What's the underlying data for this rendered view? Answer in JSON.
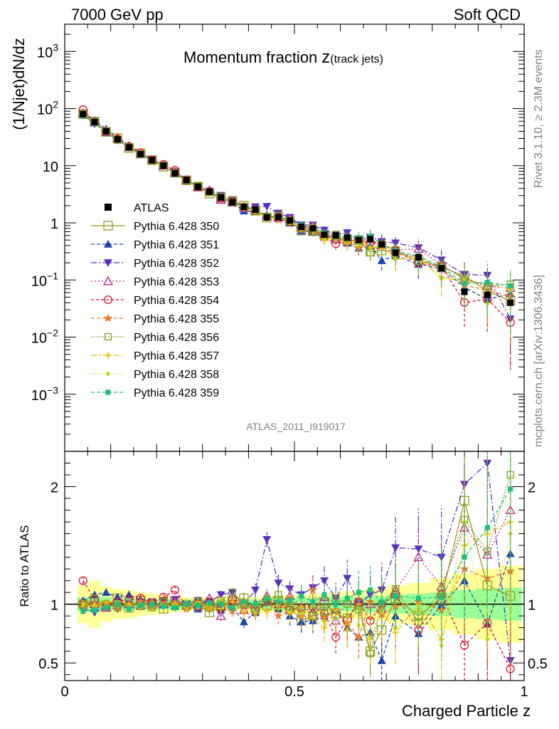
{
  "header": {
    "left": "7000 GeV pp",
    "right": "Soft QCD"
  },
  "side_labels": {
    "rivet": "Rivet 3.1.10, ≥ 2.3M events",
    "mcplots": "mcplots.cern.ch [arXiv:1306.3436]"
  },
  "chart_data": {
    "type": "line",
    "title": "Momentum fraction",
    "title_sub": "z",
    "title_sub_note": "(track jets)",
    "analysis_id": "ATLAS_2011_I919017",
    "xlabel": "Charged Particle z",
    "ylabel": "(1/Njet)dN/dz",
    "ratio_ylabel": "Ratio to ATLAS",
    "xlim": [
      0,
      1
    ],
    "ylim": [
      0.0001,
      3000
    ],
    "yscale": "log",
    "ratio_ylim": [
      0.35,
      2.3
    ],
    "x_ticks": [
      "0",
      "0.5",
      "1"
    ],
    "y_ticks": [
      {
        "base": "10",
        "exp": "3",
        "value": 1000
      },
      {
        "base": "10",
        "exp": "2",
        "value": 100
      },
      {
        "base": "10",
        "exp": "",
        "value": 10
      },
      {
        "base": "1",
        "exp": "",
        "value": 1
      },
      {
        "base": "10",
        "exp": "−1",
        "value": 0.1
      },
      {
        "base": "10",
        "exp": "−2",
        "value": 0.01
      },
      {
        "base": "10",
        "exp": "−3",
        "value": 0.001
      }
    ],
    "ratio_ticks": [
      "0.5",
      "1",
      "2"
    ],
    "ratio_tick_values": [
      0.5,
      1,
      2
    ],
    "x": [
      0.04,
      0.065,
      0.09,
      0.115,
      0.14,
      0.165,
      0.19,
      0.215,
      0.24,
      0.265,
      0.29,
      0.315,
      0.34,
      0.365,
      0.39,
      0.415,
      0.44,
      0.465,
      0.49,
      0.515,
      0.54,
      0.565,
      0.59,
      0.615,
      0.64,
      0.665,
      0.69,
      0.72,
      0.77,
      0.82,
      0.87,
      0.92,
      0.97
    ],
    "atlas": {
      "name": "ATLAS",
      "values": [
        80,
        58,
        40,
        29,
        21,
        16,
        12.5,
        10,
        7.4,
        5.6,
        4.3,
        3.5,
        2.8,
        2.3,
        1.9,
        1.7,
        1.25,
        1.25,
        1.1,
        0.85,
        0.8,
        0.62,
        0.6,
        0.55,
        0.5,
        0.52,
        0.42,
        0.3,
        0.25,
        0.16,
        0.062,
        0.055,
        0.04
      ],
      "band_inner": [
        0.06,
        0.07,
        0.06,
        0.05,
        0.05,
        0.05,
        0.05,
        0.04,
        0.04,
        0.04,
        0.04,
        0.04,
        0.04,
        0.04,
        0.04,
        0.04,
        0.05,
        0.05,
        0.05,
        0.05,
        0.05,
        0.06,
        0.06,
        0.06,
        0.06,
        0.07,
        0.07,
        0.08,
        0.09,
        0.1,
        0.12,
        0.13,
        0.14
      ],
      "band_outer": [
        0.16,
        0.2,
        0.15,
        0.13,
        0.12,
        0.1,
        0.09,
        0.08,
        0.07,
        0.06,
        0.06,
        0.06,
        0.06,
        0.06,
        0.06,
        0.06,
        0.07,
        0.07,
        0.08,
        0.08,
        0.09,
        0.09,
        0.1,
        0.11,
        0.12,
        0.13,
        0.14,
        0.16,
        0.18,
        0.22,
        0.26,
        0.3,
        0.33
      ]
    },
    "series": [
      {
        "name": "Pythia 6.428 350",
        "color": "#9a9a20",
        "marker": "square-open",
        "dash": "",
        "values": [
          1.0,
          1.02,
          0.98,
          1.05,
          0.97,
          1.03,
          1.0,
          0.96,
          1.02,
          0.99,
          1.0,
          0.93,
          0.98,
          1.02,
          1.05,
          0.96,
          0.99,
          1.03,
          0.98,
          0.86,
          0.9,
          1.01,
          0.92,
          0.88,
          1.0,
          0.6,
          0.78,
          1.05,
          0.9,
          1.05,
          1.88,
          1.16,
          1.07
        ]
      },
      {
        "name": "Pythia 6.428 351",
        "color": "#1a48b0",
        "marker": "triangle-up",
        "dash": "5,3",
        "values": [
          1.03,
          1.08,
          1.1,
          1.06,
          1.08,
          1.04,
          1.02,
          1.0,
          0.98,
          1.0,
          0.96,
          1.01,
          0.95,
          0.97,
          0.85,
          0.93,
          1.02,
          0.96,
          0.9,
          0.85,
          0.86,
          0.9,
          0.95,
          0.8,
          0.72,
          0.76,
          0.52,
          0.9,
          0.75,
          0.99,
          1.2,
          0.83,
          1.43
        ]
      },
      {
        "name": "Pythia 6.428 352",
        "color": "#5a30c0",
        "marker": "triangle-down",
        "dash": "8,3,2,3",
        "values": [
          0.96,
          0.93,
          0.97,
          0.96,
          1.0,
          0.98,
          1.02,
          1.03,
          1.04,
          1.0,
          1.03,
          1.02,
          1.08,
          1.1,
          1.0,
          1.12,
          1.55,
          1.18,
          1.13,
          1.08,
          1.14,
          1.2,
          1.05,
          1.22,
          1.0,
          1.08,
          1.12,
          1.48,
          1.47,
          1.4,
          2.02,
          2.2,
          0.52
        ]
      },
      {
        "name": "Pythia 6.428 353",
        "color": "#c02090",
        "marker": "triangle-up-open",
        "dash": "2,3",
        "values": [
          1.02,
          1.0,
          0.97,
          1.01,
          1.0,
          0.99,
          1.01,
          1.0,
          1.03,
          1.0,
          0.98,
          1.05,
          0.9,
          1.02,
          0.95,
          1.0,
          1.07,
          1.0,
          1.07,
          0.98,
          0.93,
          1.06,
          0.86,
          1.03,
          1.02,
          1.0,
          0.96,
          1.12,
          1.4,
          1.15,
          1.65,
          1.42,
          1.8
        ]
      },
      {
        "name": "Pythia 6.428 354",
        "color": "#e0102c",
        "marker": "circle-open",
        "dash": "4,3",
        "values": [
          1.2,
          1.04,
          1.0,
          1.02,
          1.04,
          1.05,
          1.01,
          1.06,
          1.12,
          0.99,
          1.0,
          1.02,
          0.97,
          1.04,
          1.0,
          0.96,
          1.02,
          1.0,
          0.95,
          0.97,
          0.98,
          0.92,
          0.72,
          0.87,
          1.02,
          0.86,
          1.0,
          1.08,
          0.78,
          1.08,
          0.65,
          0.84,
          0.45
        ]
      },
      {
        "name": "Pythia 6.428 355",
        "color": "#f07828",
        "marker": "star",
        "dash": "5,3",
        "values": [
          0.98,
          0.99,
          1.01,
          0.97,
          1.0,
          1.02,
          0.98,
          1.0,
          1.01,
          0.96,
          1.0,
          0.97,
          1.02,
          0.94,
          1.0,
          0.92,
          1.06,
          0.9,
          1.05,
          0.9,
          1.12,
          0.88,
          0.95,
          0.84,
          0.72,
          1.02,
          0.91,
          0.98,
          1.02,
          0.95,
          1.3,
          1.22,
          1.28
        ]
      },
      {
        "name": "Pythia 6.428 356",
        "color": "#80a020",
        "marker": "square-open-small",
        "dash": "2,2",
        "values": [
          1.0,
          1.05,
          1.0,
          0.97,
          1.01,
          0.98,
          0.97,
          1.02,
          1.0,
          0.98,
          1.02,
          0.97,
          1.03,
          1.1,
          1.0,
          0.95,
          1.03,
          1.08,
          0.97,
          0.95,
          0.9,
          0.93,
          1.04,
          1.0,
          0.95,
          0.58,
          1.0,
          1.13,
          0.85,
          1.12,
          1.72,
          1.45,
          2.1
        ]
      },
      {
        "name": "Pythia 6.428 357",
        "color": "#e8c000",
        "marker": "plus-small",
        "dash": "8,3,2,3",
        "values": [
          1.01,
          0.98,
          1.02,
          1.0,
          0.98,
          1.0,
          1.02,
          0.99,
          1.0,
          0.97,
          1.02,
          0.98,
          0.96,
          1.02,
          0.93,
          1.0,
          0.94,
          1.0,
          0.92,
          0.98,
          0.88,
          0.8,
          0.95,
          0.78,
          1.0,
          0.7,
          0.95,
          0.76,
          1.0,
          0.7,
          1.5,
          1.6,
          1.7
        ]
      },
      {
        "name": "Pythia 6.428 358",
        "color": "#c8d010",
        "marker": "dot",
        "dash": "1,2",
        "values": [
          0.99,
          1.0,
          0.98,
          1.02,
          1.0,
          0.97,
          1.0,
          0.98,
          0.99,
          1.02,
          0.97,
          1.0,
          1.03,
          0.98,
          1.0,
          0.93,
          1.05,
          0.96,
          1.02,
          0.92,
          0.98,
          0.85,
          0.88,
          0.9,
          0.82,
          0.72,
          0.93,
          0.8,
          0.95,
          0.65,
          1.7,
          0.7,
          1.6
        ]
      },
      {
        "name": "Pythia 6.428 359",
        "color": "#20c080",
        "marker": "square-small",
        "dash": "5,3",
        "values": [
          0.94,
          0.95,
          0.97,
          1.0,
          0.96,
          0.99,
          1.0,
          0.98,
          0.97,
          1.0,
          0.99,
          1.01,
          1.0,
          0.97,
          1.02,
          1.0,
          1.05,
          1.02,
          1.03,
          1.07,
          1.02,
          1.08,
          1.0,
          1.05,
          1.1,
          1.12,
          1.02,
          1.07,
          1.05,
          1.06,
          1.4,
          1.65,
          1.98
        ]
      }
    ]
  }
}
